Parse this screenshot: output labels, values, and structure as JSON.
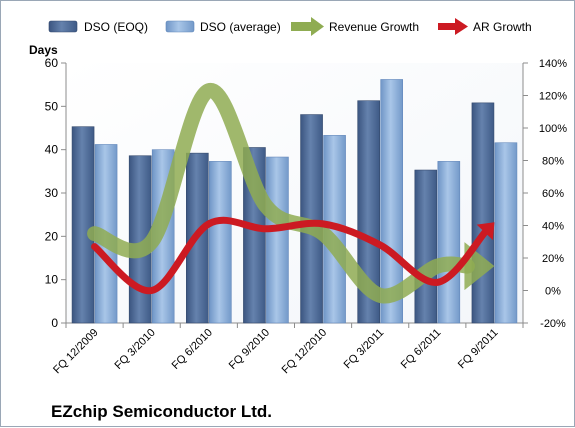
{
  "chart_data": {
    "type": "bar",
    "categories": [
      "FQ 12/2009",
      "FQ 3/2010",
      "FQ 6/2010",
      "FQ 9/2010",
      "FQ 12/2010",
      "FQ 3/2011",
      "FQ 6/2011",
      "FQ 9/2011"
    ],
    "series": [
      {
        "name": "DSO (EOQ)",
        "type": "bar",
        "axis": "left",
        "color": "#4f6c98",
        "values": [
          45.3,
          38.6,
          39.2,
          40.5,
          48.1,
          51.3,
          35.3,
          50.8
        ]
      },
      {
        "name": "DSO (average)",
        "type": "bar",
        "axis": "left",
        "color": "#8db1da",
        "values": [
          41.2,
          40.0,
          37.3,
          38.3,
          43.3,
          56.2,
          37.3,
          41.6
        ]
      },
      {
        "name": "Revenue Growth",
        "type": "line",
        "axis": "right",
        "color": "#8fac52",
        "values": [
          35,
          30,
          123,
          52,
          35,
          -3,
          15,
          15
        ]
      },
      {
        "name": "AR Growth",
        "type": "line",
        "axis": "right",
        "color": "#cc1a22",
        "values": [
          27,
          0,
          41,
          38,
          41,
          28,
          5,
          42
        ]
      }
    ],
    "y_left": {
      "label": "Days",
      "min": 0,
      "max": 60,
      "ticks": [
        "0",
        "10",
        "20",
        "30",
        "40",
        "50",
        "60"
      ]
    },
    "y_right": {
      "min": -20,
      "max": 140,
      "ticks": [
        "-20%",
        "0%",
        "20%",
        "40%",
        "60%",
        "80%",
        "100%",
        "120%",
        "140%"
      ]
    },
    "grid": false,
    "legend_position": "top",
    "footer_title": "EZchip Semiconductor Ltd."
  }
}
